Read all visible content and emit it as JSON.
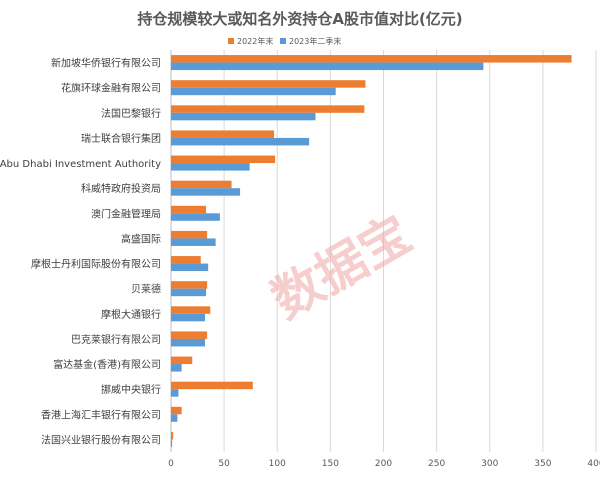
{
  "chart_data": {
    "type": "bar",
    "orientation": "horizontal",
    "title": "持仓规模较大或知名外资持仓A股市值对比(亿元)",
    "categories": [
      "新加坡华侨银行有限公司",
      "花旗环球金融有限公司",
      "法国巴黎银行",
      "瑞士联合银行集团",
      "Abu Dhabi Investment Authority",
      "科威特政府投资局",
      "澳门金融管理局",
      "高盛国际",
      "摩根士丹利国际股份有限公司",
      "贝莱德",
      "摩根大通银行",
      "巴克莱银行有限公司",
      "富达基金(香港)有限公司",
      "挪威中央银行",
      "香港上海汇丰银行有限公司",
      "法国兴业银行股份有限公司"
    ],
    "series": [
      {
        "name": "2022年末",
        "color": "#ed7d31",
        "values": [
          377,
          183,
          182,
          97,
          98,
          57,
          33,
          34,
          28,
          34,
          37,
          34,
          20,
          77,
          10,
          2
        ]
      },
      {
        "name": "2023年二季末",
        "color": "#5b9bd5",
        "values": [
          294,
          155,
          136,
          130,
          74,
          65,
          46,
          42,
          35,
          33,
          32,
          32,
          10,
          7,
          6,
          1
        ]
      }
    ],
    "xlim": [
      0,
      400
    ],
    "xticks": [
      0,
      50,
      100,
      150,
      200,
      250,
      300,
      350,
      400
    ],
    "grid": true,
    "legend_position": "top-right",
    "watermark": "数据宝"
  }
}
